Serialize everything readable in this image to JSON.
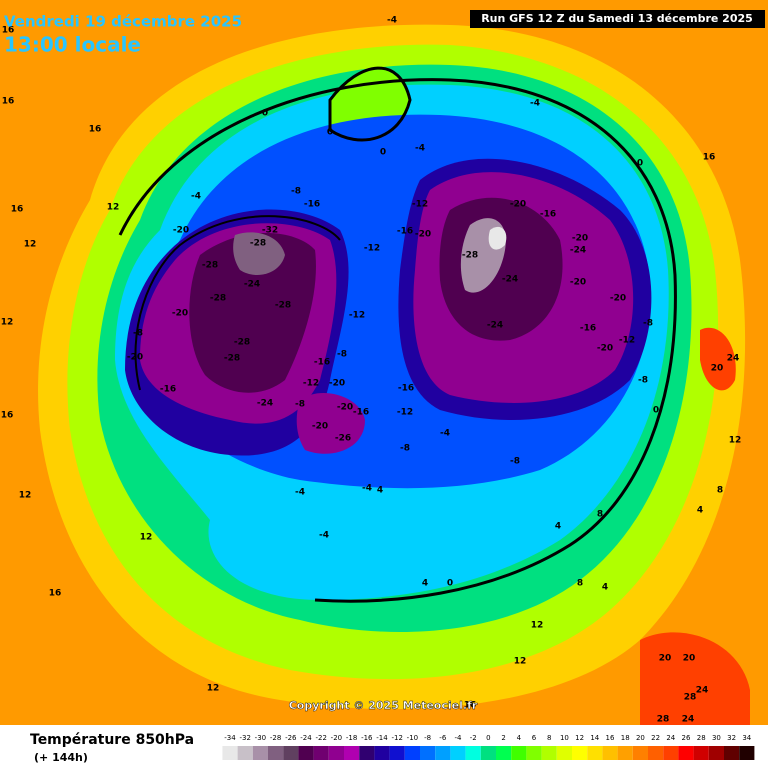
{
  "header": {
    "date": "Vendredi 19 décembre 2025",
    "time": "13:00 locale",
    "run": "Run GFS 12 Z du Samedi 13 décembre 2025"
  },
  "map": {
    "copyright": "Copyright © 2025 Meteociel.fr",
    "contour_labels": [
      -28,
      -32,
      -28,
      -24,
      -28,
      -20,
      -28,
      -28,
      -28,
      -16,
      -24,
      -20,
      -8,
      -20,
      -16,
      -8,
      -4,
      -12,
      -16,
      -20,
      -12,
      -20,
      -16,
      -28,
      -24,
      -24,
      -20,
      -24,
      -20,
      -20,
      -16,
      -20,
      -12,
      -8,
      -8,
      -12,
      -8,
      -16,
      -12,
      -20,
      -20,
      -16,
      -20,
      -26,
      -8,
      -16,
      -12,
      -4,
      -8,
      -8,
      -4,
      -4,
      -4,
      0,
      0,
      0,
      -4,
      -4,
      0,
      0,
      4,
      4,
      0,
      4,
      8,
      12,
      12,
      12,
      16,
      16,
      16,
      16,
      20,
      24,
      24,
      28,
      24,
      12,
      12,
      8,
      4,
      -4,
      16,
      16,
      12,
      16,
      12,
      16,
      4,
      8,
      12,
      20,
      20,
      28,
      12
    ]
  },
  "legend": {
    "title": "Température 850hPa",
    "subtitle": "(+ 144h)",
    "ticks": [
      -34,
      -32,
      -30,
      -28,
      -26,
      -24,
      -22,
      -20,
      -18,
      -16,
      -14,
      -12,
      -10,
      -8,
      -6,
      -4,
      -2,
      0,
      2,
      4,
      6,
      8,
      10,
      12,
      14,
      16,
      18,
      20,
      22,
      24,
      26,
      28,
      30,
      32,
      34
    ],
    "colors": [
      "#e8e8e8",
      "#c8c0c8",
      "#a890a8",
      "#806080",
      "#604060",
      "#500050",
      "#700070",
      "#900090",
      "#b000b0",
      "#300070",
      "#2000a0",
      "#1010d0",
      "#0040ff",
      "#0070ff",
      "#00a0ff",
      "#00d0ff",
      "#00ffe0",
      "#00e080",
      "#00ff50",
      "#40ff00",
      "#80ff00",
      "#b0ff00",
      "#e0ff00",
      "#ffff00",
      "#ffe000",
      "#ffc000",
      "#ffa000",
      "#ff8000",
      "#ff6000",
      "#ff4000",
      "#ff0000",
      "#d00000",
      "#a00000",
      "#600000",
      "#200000"
    ]
  }
}
